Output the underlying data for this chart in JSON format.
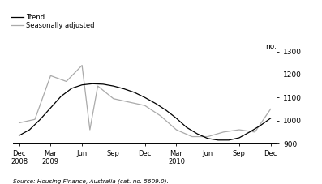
{
  "source_text": "Source: Housing Finance, Australia (cat. no. 5609.0).",
  "ylabel": "no.",
  "ylim": [
    900,
    1300
  ],
  "yticks": [
    900,
    1000,
    1100,
    1200,
    1300
  ],
  "trend_color": "#000000",
  "seasonal_color": "#aaaaaa",
  "legend_entries": [
    "Trend",
    "Seasonally adjusted"
  ],
  "trend_x": [
    0,
    0.33,
    0.67,
    1,
    1.33,
    1.67,
    2,
    2.33,
    2.67,
    3,
    3.33,
    3.67,
    4,
    4.33,
    4.67,
    5,
    5.33,
    5.67,
    6,
    6.33,
    6.67,
    7,
    7.33,
    7.67,
    8
  ],
  "trend_y": [
    935,
    960,
    1005,
    1055,
    1105,
    1140,
    1155,
    1160,
    1158,
    1150,
    1138,
    1122,
    1100,
    1075,
    1045,
    1010,
    970,
    942,
    922,
    915,
    915,
    925,
    950,
    978,
    1010
  ],
  "seasonal_x": [
    0,
    0.5,
    1,
    1.5,
    2,
    2.25,
    2.5,
    3,
    3.5,
    4,
    4.5,
    5,
    5.5,
    6,
    6.5,
    7,
    7.5,
    8
  ],
  "seasonal_y": [
    990,
    1005,
    1195,
    1170,
    1240,
    960,
    1150,
    1095,
    1080,
    1065,
    1020,
    960,
    930,
    930,
    950,
    960,
    950,
    1050
  ]
}
